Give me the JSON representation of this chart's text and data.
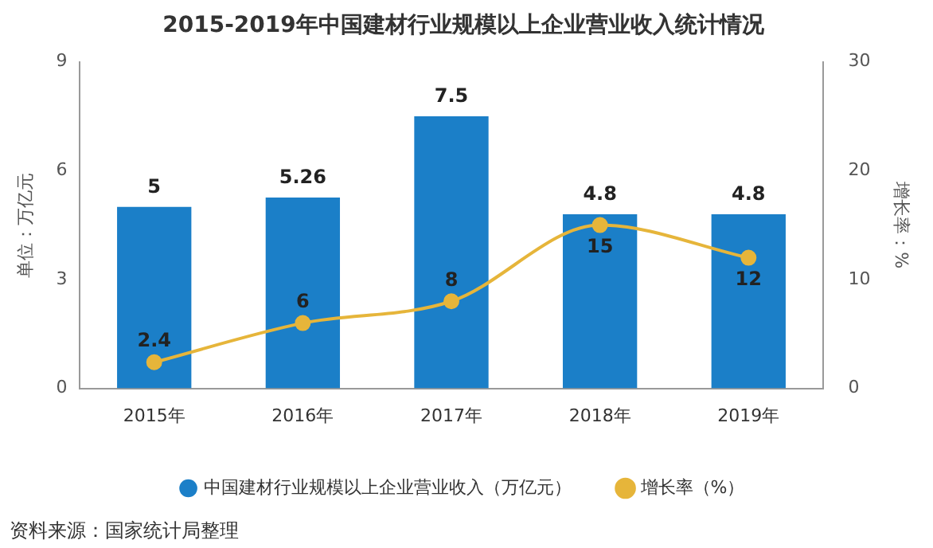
{
  "chart_data": {
    "type": "bar",
    "title": "2015-2019年中国建材行业规模以上企业营业收入统计情况",
    "categories": [
      "2015年",
      "2016年",
      "2017年",
      "2018年",
      "2019年"
    ],
    "series": [
      {
        "name": "中国建材行业规模以上企业营业收入（万亿元）",
        "color": "#1b7fc8",
        "values": [
          5,
          5.26,
          7.5,
          4.8,
          4.8
        ]
      },
      {
        "name": "增长率（%）",
        "type": "line",
        "axis": "y2",
        "color": "#e6b53a",
        "values": [
          2.4,
          6,
          8,
          15,
          12
        ]
      }
    ],
    "ylabel": "单位：万亿元",
    "y2label": "增长率：%",
    "ylim": [
      0,
      9
    ],
    "yticks": [
      0,
      3,
      6,
      9
    ],
    "y2lim": [
      0,
      30
    ],
    "y2ticks": [
      0,
      10,
      20,
      30
    ],
    "data_labels": true,
    "grid": false,
    "legend": "bottom",
    "marker": "circle",
    "annotations": [
      "资料来源：国家统计局整理"
    ]
  }
}
